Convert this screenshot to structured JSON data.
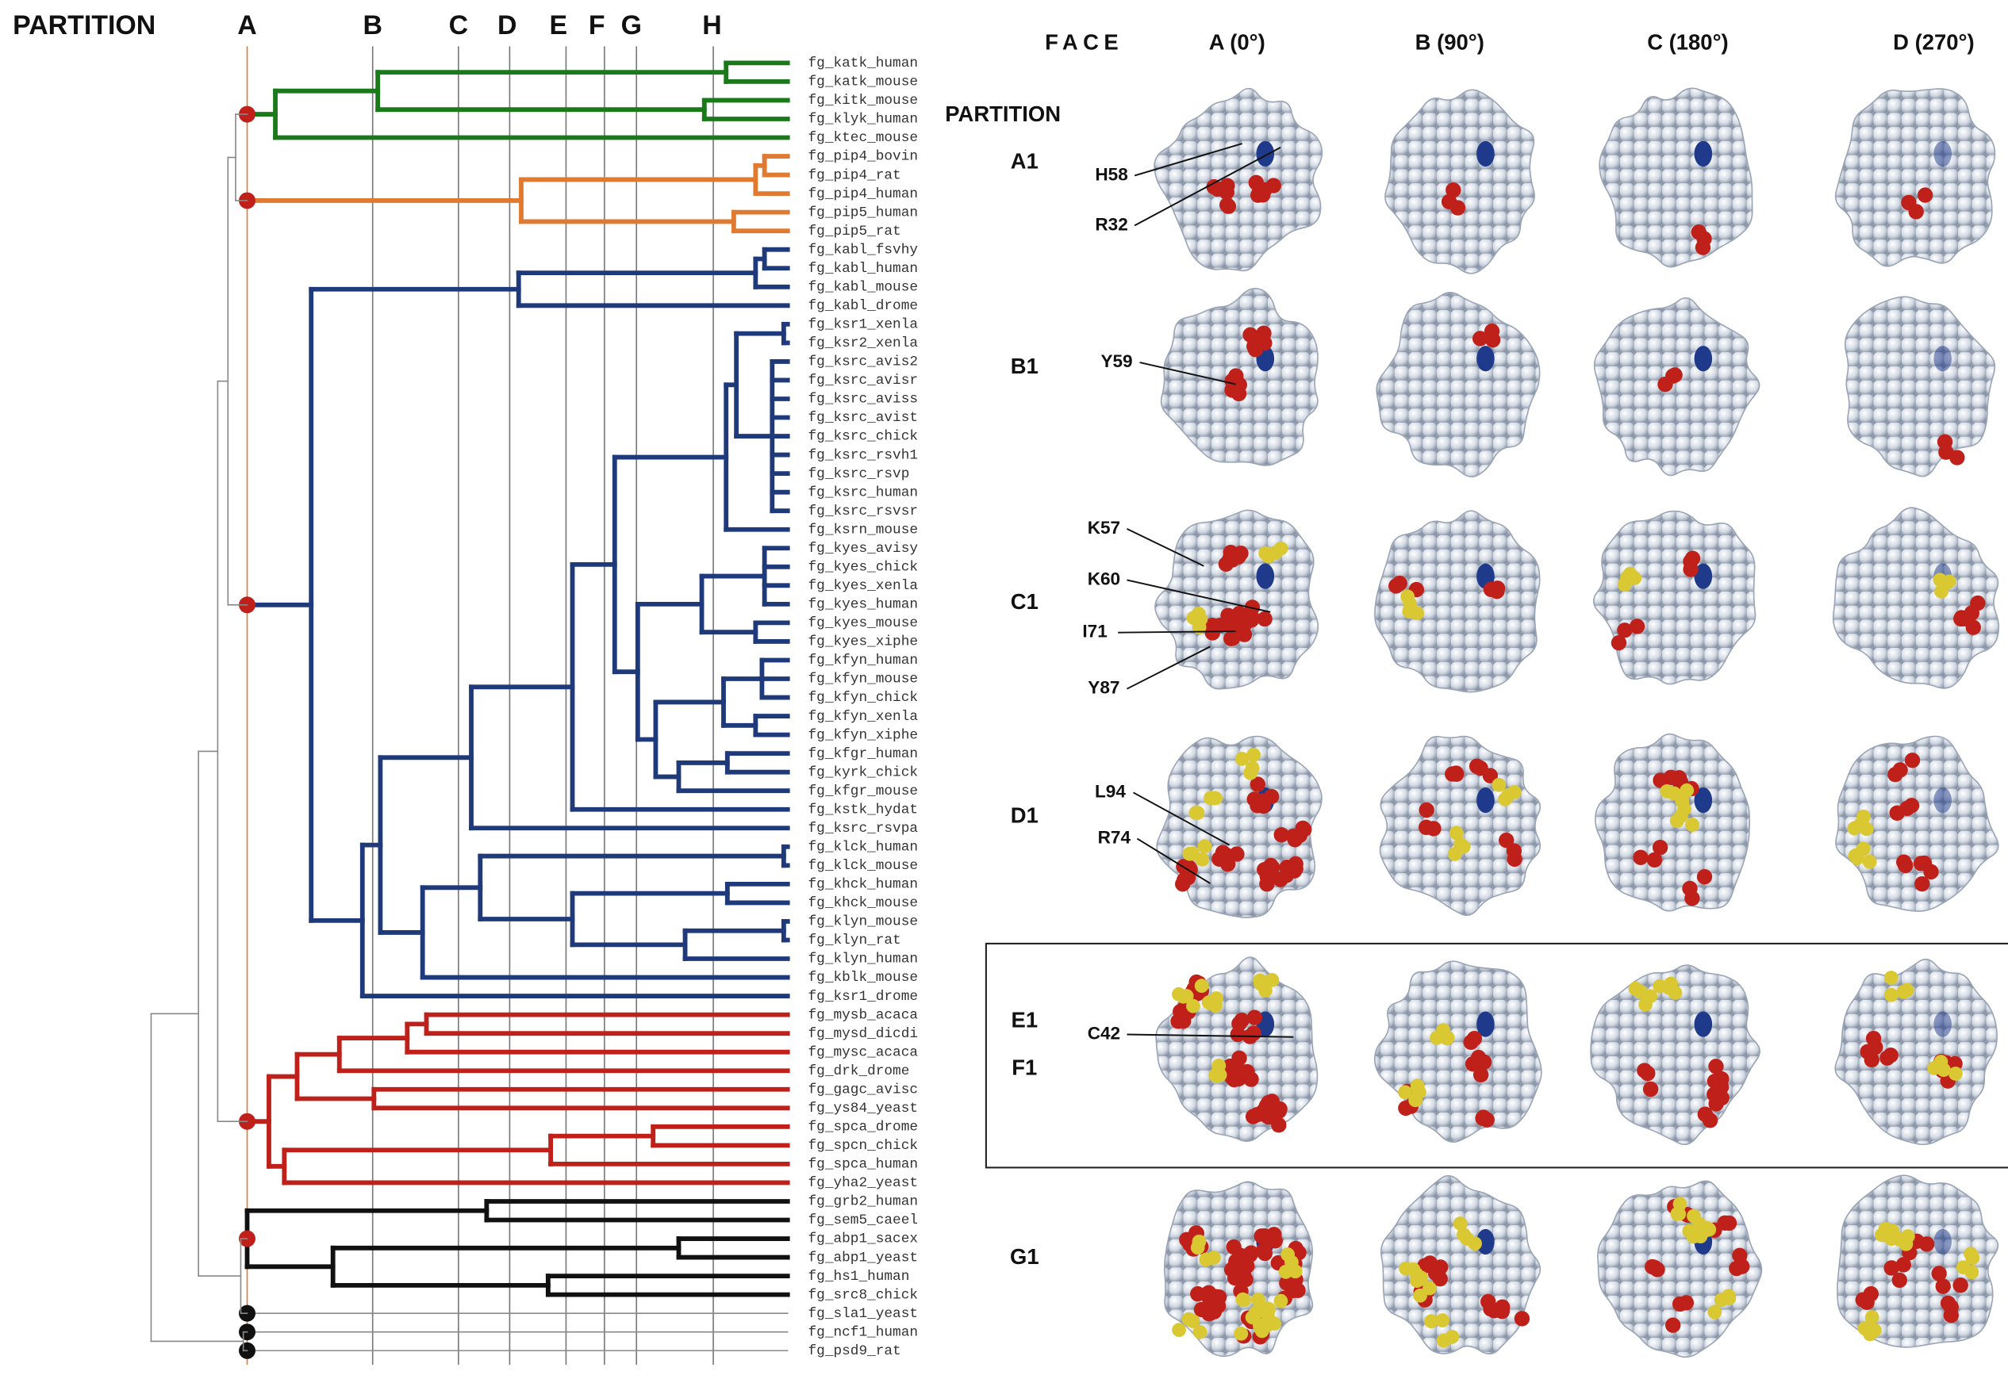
{
  "header": {
    "title": "PARTITION",
    "partitions": [
      "A",
      "B",
      "C",
      "D",
      "E",
      "F",
      "G",
      "H"
    ]
  },
  "leaves": [
    "fg_katk_human",
    "fg_katk_mouse",
    "fg_kitk_mouse",
    "fg_klyk_human",
    "fg_ktec_mouse",
    "fg_pip4_bovin",
    "fg_pip4_rat",
    "fg_pip4_human",
    "fg_pip5_human",
    "fg_pip5_rat",
    "fg_kabl_fsvhy",
    "fg_kabl_human",
    "fg_kabl_mouse",
    "fg_kabl_drome",
    "fg_ksr1_xenla",
    "fg_ksr2_xenla",
    "fg_ksrc_avis2",
    "fg_ksrc_avisr",
    "fg_ksrc_aviss",
    "fg_ksrc_avist",
    "fg_ksrc_chick",
    "fg_ksrc_rsvh1",
    "fg_ksrc_rsvp",
    "fg_ksrc_human",
    "fg_ksrc_rsvsr",
    "fg_ksrn_mouse",
    "fg_kyes_avisy",
    "fg_kyes_chick",
    "fg_kyes_xenla",
    "fg_kyes_human",
    "fg_kyes_mouse",
    "fg_kyes_xiphe",
    "fg_kfyn_human",
    "fg_kfyn_mouse",
    "fg_kfyn_chick",
    "fg_kfyn_xenla",
    "fg_kfyn_xiphe",
    "fg_kfgr_human",
    "fg_kyrk_chick",
    "fg_kfgr_mouse",
    "fg_kstk_hydat",
    "fg_ksrc_rsvpa",
    "fg_klck_human",
    "fg_klck_mouse",
    "fg_khck_human",
    "fg_khck_mouse",
    "fg_klyn_mouse",
    "fg_klyn_rat",
    "fg_klyn_human",
    "fg_kblk_mouse",
    "fg_ksr1_drome",
    "fg_mysb_acaca",
    "fg_mysd_dicdi",
    "fg_mysc_acaca",
    "fg_drk_drome",
    "fg_gagc_avisc",
    "fg_ys84_yeast",
    "fg_spca_drome",
    "fg_spcn_chick",
    "fg_spca_human",
    "fg_yha2_yeast",
    "fg_grb2_human",
    "fg_sem5_caeel",
    "fg_abp1_sacex",
    "fg_abp1_yeast",
    "fg_hs1_human",
    "fg_src8_chick",
    "fg_sla1_yeast",
    "fg_ncf1_human",
    "fg_psd9_rat"
  ],
  "faces": {
    "title": "FACE",
    "labels": [
      "A (0°)",
      "B (90°)",
      "C (180°)",
      "D (270°)"
    ]
  },
  "rows": {
    "title": "PARTITION",
    "labels": [
      "A1",
      "B1",
      "C1",
      "D1",
      "E1",
      "F1",
      "G1"
    ]
  },
  "residues": [
    "H58",
    "R32",
    "Y59",
    "K57",
    "K60",
    "I71",
    "Y87",
    "L94",
    "R74",
    "C42"
  ]
}
